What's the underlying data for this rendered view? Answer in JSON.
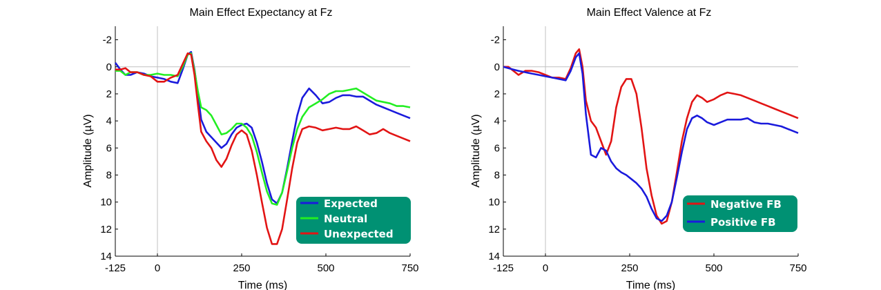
{
  "chart_data": [
    {
      "type": "line",
      "title": "Main Effect Expectancy at Fz",
      "xlabel": "Time (ms)",
      "ylabel": "Amplitude (µV)",
      "xlim": [
        -125,
        750
      ],
      "ylim": [
        14,
        -3
      ],
      "y_reversed": true,
      "x_ticks": [
        -125,
        0,
        250,
        500,
        750
      ],
      "y_ticks": [
        -2,
        0,
        2,
        4,
        6,
        8,
        10,
        12,
        14
      ],
      "zero_lines": true,
      "legend_position": "lower-right",
      "legend_bg": "#009173",
      "series": [
        {
          "name": "Expected",
          "color": "#1a1adc",
          "x": [
            -125,
            -110,
            -95,
            -80,
            -60,
            -40,
            -20,
            0,
            20,
            40,
            60,
            75,
            90,
            100,
            110,
            120,
            130,
            145,
            160,
            175,
            190,
            205,
            220,
            235,
            250,
            265,
            280,
            295,
            310,
            325,
            340,
            355,
            370,
            385,
            400,
            415,
            430,
            450,
            470,
            490,
            510,
            530,
            550,
            570,
            590,
            610,
            630,
            650,
            670,
            690,
            710,
            730,
            750
          ],
          "y": [
            -0.3,
            0.2,
            0.6,
            0.6,
            0.4,
            0.5,
            0.7,
            0.8,
            0.9,
            1.1,
            1.2,
            0.2,
            -0.9,
            -1.1,
            0.2,
            2.0,
            3.9,
            4.8,
            5.2,
            5.6,
            6.0,
            5.7,
            5.0,
            4.5,
            4.3,
            4.2,
            4.5,
            5.6,
            7.0,
            8.6,
            9.8,
            10.1,
            9.3,
            7.5,
            5.5,
            3.6,
            2.3,
            1.6,
            2.1,
            2.7,
            2.6,
            2.3,
            2.1,
            2.1,
            2.2,
            2.2,
            2.5,
            2.8,
            3.0,
            3.2,
            3.4,
            3.6,
            3.8
          ]
        },
        {
          "name": "Neutral",
          "color": "#22ee22",
          "x": [
            -125,
            -110,
            -95,
            -80,
            -60,
            -40,
            -20,
            0,
            20,
            40,
            60,
            75,
            90,
            100,
            110,
            120,
            130,
            145,
            160,
            175,
            190,
            205,
            220,
            235,
            250,
            265,
            280,
            295,
            310,
            325,
            340,
            355,
            370,
            385,
            400,
            415,
            430,
            450,
            470,
            490,
            510,
            530,
            550,
            570,
            590,
            610,
            630,
            650,
            670,
            690,
            710,
            730,
            750
          ],
          "y": [
            0.3,
            0.3,
            0.6,
            0.4,
            0.4,
            0.6,
            0.6,
            0.5,
            0.6,
            0.6,
            0.7,
            0.0,
            -0.9,
            -1.0,
            0.3,
            1.8,
            3.0,
            3.2,
            3.6,
            4.3,
            5.0,
            4.9,
            4.6,
            4.2,
            4.2,
            4.5,
            5.1,
            6.3,
            7.8,
            9.2,
            10.1,
            10.2,
            9.3,
            7.7,
            6.0,
            4.6,
            3.7,
            3.0,
            2.7,
            2.4,
            2.0,
            1.8,
            1.8,
            1.7,
            1.6,
            1.9,
            2.2,
            2.5,
            2.6,
            2.7,
            2.9,
            2.9,
            3.0
          ]
        },
        {
          "name": "Unexpected",
          "color": "#e21414",
          "x": [
            -125,
            -110,
            -95,
            -80,
            -60,
            -40,
            -20,
            0,
            20,
            40,
            60,
            75,
            90,
            100,
            110,
            120,
            130,
            145,
            160,
            175,
            190,
            205,
            220,
            235,
            250,
            265,
            280,
            295,
            310,
            325,
            340,
            355,
            370,
            385,
            400,
            415,
            430,
            450,
            470,
            490,
            510,
            530,
            550,
            570,
            590,
            610,
            630,
            650,
            670,
            690,
            710,
            730,
            750
          ],
          "y": [
            0.2,
            0.2,
            0.1,
            0.4,
            0.4,
            0.6,
            0.7,
            1.1,
            1.1,
            0.8,
            0.6,
            -0.2,
            -1.0,
            -0.9,
            0.6,
            2.8,
            4.8,
            5.5,
            6.0,
            6.9,
            7.4,
            6.8,
            5.8,
            5.0,
            4.7,
            5.0,
            6.2,
            8.0,
            10.0,
            11.9,
            13.1,
            13.1,
            12.0,
            9.8,
            7.5,
            5.6,
            4.6,
            4.4,
            4.5,
            4.7,
            4.6,
            4.5,
            4.6,
            4.6,
            4.4,
            4.7,
            5.0,
            4.9,
            4.6,
            4.9,
            5.1,
            5.3,
            5.5
          ]
        }
      ]
    },
    {
      "type": "line",
      "title": "Main Effect Valence at Fz",
      "xlabel": "Time (ms)",
      "ylabel": "Amplitude (µV)",
      "xlim": [
        -125,
        750
      ],
      "ylim": [
        14,
        -3
      ],
      "y_reversed": true,
      "x_ticks": [
        -125,
        0,
        250,
        500,
        750
      ],
      "y_ticks": [
        -2,
        0,
        2,
        4,
        6,
        8,
        10,
        12,
        14
      ],
      "zero_lines": true,
      "legend_position": "lower-right",
      "legend_bg": "#009173",
      "series": [
        {
          "name": "Negative FB",
          "color": "#e21414",
          "x": [
            -125,
            -110,
            -95,
            -80,
            -60,
            -40,
            -20,
            0,
            20,
            40,
            60,
            75,
            90,
            100,
            110,
            120,
            135,
            150,
            165,
            180,
            195,
            210,
            225,
            240,
            255,
            270,
            285,
            300,
            315,
            330,
            345,
            360,
            375,
            390,
            405,
            420,
            435,
            450,
            465,
            480,
            500,
            520,
            540,
            560,
            580,
            600,
            620,
            640,
            660,
            680,
            700,
            720,
            750
          ],
          "y": [
            0.0,
            0.0,
            0.3,
            0.6,
            0.3,
            0.3,
            0.4,
            0.6,
            0.8,
            0.8,
            0.9,
            0.1,
            -1.0,
            -1.3,
            0.0,
            2.5,
            4.0,
            4.5,
            5.5,
            6.5,
            5.5,
            3.0,
            1.5,
            0.9,
            0.9,
            2.0,
            4.5,
            7.5,
            9.5,
            11.0,
            11.6,
            11.4,
            10.0,
            7.8,
            5.5,
            3.8,
            2.6,
            2.1,
            2.3,
            2.6,
            2.4,
            2.1,
            1.9,
            2.0,
            2.1,
            2.3,
            2.5,
            2.7,
            2.9,
            3.1,
            3.3,
            3.5,
            3.8
          ]
        },
        {
          "name": "Positive FB",
          "color": "#1a1adc",
          "x": [
            -125,
            -110,
            -95,
            -80,
            -60,
            -40,
            -20,
            0,
            20,
            40,
            60,
            75,
            90,
            100,
            110,
            120,
            135,
            150,
            165,
            180,
            195,
            210,
            225,
            240,
            255,
            270,
            285,
            300,
            315,
            330,
            345,
            360,
            375,
            390,
            405,
            420,
            435,
            450,
            465,
            480,
            500,
            520,
            540,
            560,
            580,
            600,
            620,
            640,
            660,
            680,
            700,
            720,
            750
          ],
          "y": [
            0.0,
            0.1,
            0.2,
            0.3,
            0.4,
            0.5,
            0.6,
            0.7,
            0.8,
            0.9,
            1.0,
            0.3,
            -0.7,
            -1.0,
            0.5,
            3.5,
            6.5,
            6.7,
            6.0,
            6.2,
            7.0,
            7.5,
            7.8,
            8.0,
            8.3,
            8.6,
            9.0,
            9.6,
            10.5,
            11.2,
            11.4,
            11.0,
            10.0,
            8.2,
            6.3,
            4.6,
            3.8,
            3.6,
            3.8,
            4.1,
            4.3,
            4.1,
            3.9,
            3.9,
            3.9,
            3.8,
            4.1,
            4.2,
            4.2,
            4.3,
            4.4,
            4.6,
            4.9
          ]
        }
      ]
    }
  ]
}
